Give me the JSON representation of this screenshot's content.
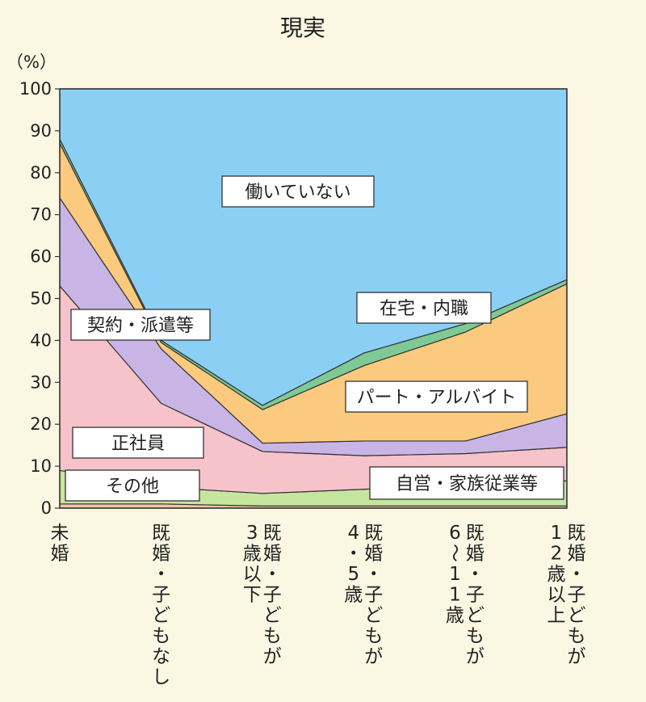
{
  "chart_data": {
    "type": "area",
    "stacked": true,
    "title": "現実",
    "ylabel": "（%）",
    "ylim": [
      0,
      100
    ],
    "yticks": [
      0,
      10,
      20,
      30,
      40,
      50,
      60,
      70,
      80,
      90,
      100
    ],
    "categories": [
      "未婚",
      "既婚・子どもなし",
      "既婚・子どもが3歳以下",
      "既婚・子どもが4・5歳",
      "既婚・子どもが6～11歳",
      "既婚・子どもが12歳以上"
    ],
    "category_lines": [
      [
        "未婚"
      ],
      [
        "既婚・子どもなし"
      ],
      [
        "既婚・子どもが",
        "3歳以下"
      ],
      [
        "既婚・子どもが",
        "4・5歳"
      ],
      [
        "既婚・子どもが",
        "6～11歳"
      ],
      [
        "既婚・子どもが",
        "12歳以上"
      ]
    ],
    "series": [
      {
        "name": "その他",
        "color": "#f3c4a6",
        "values": [
          1,
          1,
          0.5,
          0.5,
          0.5,
          0.5
        ]
      },
      {
        "name": "自営・家族従業等",
        "color": "#c6e6a0",
        "values": [
          8,
          4,
          3,
          4,
          5,
          6
        ]
      },
      {
        "name": "正社員",
        "color": "#f7c3cb",
        "values": [
          44,
          20,
          10,
          8,
          7.5,
          8
        ]
      },
      {
        "name": "契約・派遣等",
        "color": "#c9b5e5",
        "values": [
          21,
          13,
          2,
          3.5,
          3,
          8
        ]
      },
      {
        "name": "パート・アルバイト",
        "color": "#fbca7f",
        "values": [
          13,
          1.5,
          8,
          18,
          26,
          31
        ]
      },
      {
        "name": "在宅・内職",
        "color": "#7fca94",
        "values": [
          1,
          0.5,
          1,
          3,
          2,
          1
        ]
      },
      {
        "name": "働いていない",
        "color": "#8ccff5",
        "values": [
          12,
          60,
          75.5,
          63,
          56,
          45.5
        ]
      }
    ]
  }
}
